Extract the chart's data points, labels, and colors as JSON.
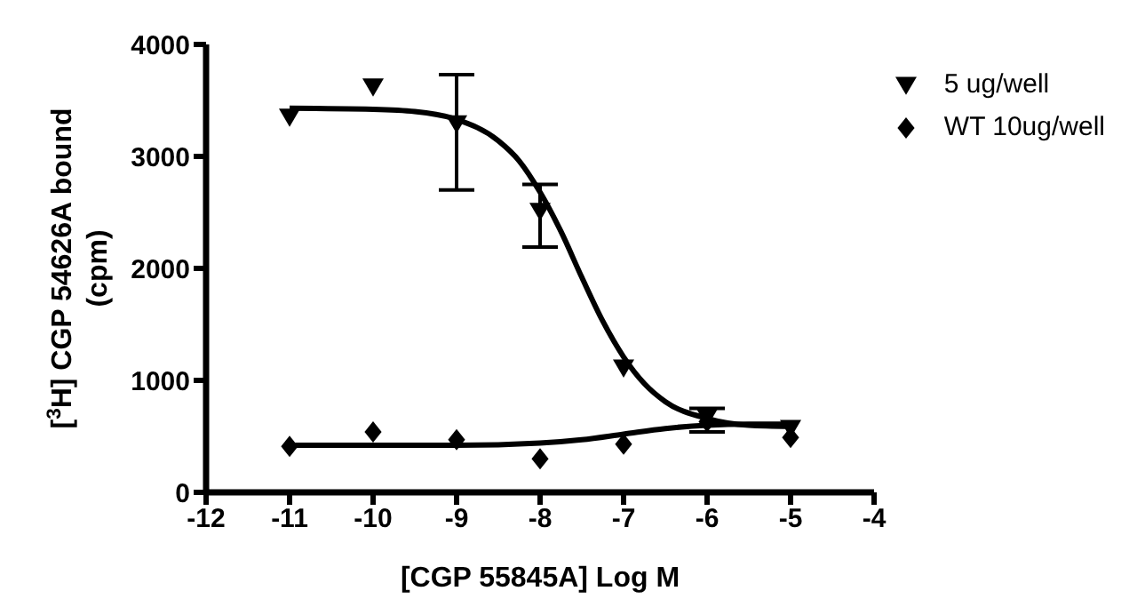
{
  "chart_data": {
    "type": "scatter",
    "xlabel": "[CGP 55845A] Log M",
    "ylabel": "[$^{3}$H] CGP 54626A bound (cpm)",
    "xlim": [
      -12,
      -4
    ],
    "xticks": [
      -12,
      -11,
      -10,
      -9,
      -8,
      -7,
      -6,
      -5,
      -4
    ],
    "ylim": [
      0,
      4000
    ],
    "yticks": [
      0,
      1000,
      2000,
      3000,
      4000
    ],
    "legend": "top right",
    "series": [
      {
        "name": "5 ug/well",
        "marker": "triangle",
        "color": "#000000",
        "x": [
          -11,
          -10,
          -9,
          -8,
          -7,
          -6,
          -5
        ],
        "values": [
          3350,
          3620,
          3290,
          2510,
          1110,
          670,
          570
        ],
        "errors": [
          null,
          null,
          [
            2700,
            3730
          ],
          [
            2190,
            2750
          ],
          null,
          [
            540,
            750
          ],
          null
        ]
      },
      {
        "name": "WT 10ug/well",
        "marker": "diamond",
        "color": "#000000",
        "x": [
          -11,
          -10,
          -9,
          -8,
          -7,
          -6,
          -5
        ],
        "values": [
          410,
          540,
          470,
          300,
          430,
          630,
          490
        ]
      },
      {
        "type": "line",
        "marker": "none",
        "line_style": "solid",
        "color": "#000000",
        "x": [
          -11,
          -10,
          -9.5,
          -9,
          -8.5,
          -8.25,
          -8,
          -7.75,
          -7.5,
          -7.25,
          -7,
          -6.75,
          -6.5,
          -6,
          -5.5,
          -5
        ],
        "values": [
          3430,
          3420,
          3400,
          3330,
          3140,
          2960,
          2680,
          2330,
          1920,
          1530,
          1210,
          970,
          810,
          660,
          600,
          590
        ]
      },
      {
        "type": "line",
        "marker": "none",
        "line_style": "solid",
        "color": "#000000",
        "x": [
          -11,
          -10,
          -9,
          -8,
          -7.5,
          -7,
          -6.5,
          -6,
          -5.5,
          -5
        ],
        "values": [
          420,
          420,
          420,
          440,
          470,
          520,
          570,
          600,
          610,
          610
        ]
      }
    ]
  }
}
